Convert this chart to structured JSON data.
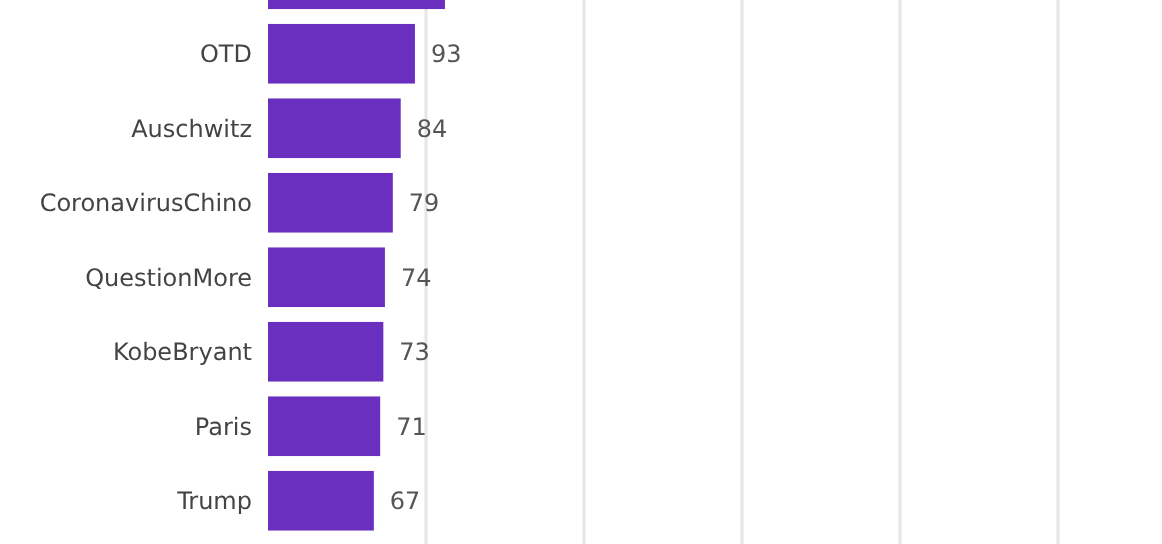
{
  "chart_data": {
    "type": "bar",
    "orientation": "horizontal",
    "categories": [
      null,
      "OTD",
      "Auschwitz",
      "CoronavirusChino",
      "QuestionMore",
      "KobeBryant",
      "Paris",
      "Trump"
    ],
    "values": [
      112,
      93,
      84,
      79,
      74,
      73,
      71,
      67
    ],
    "value_labels": [
      null,
      "93",
      "84",
      "79",
      "74",
      "73",
      "71",
      "67"
    ],
    "color": "#6a2fbf",
    "xlim": [
      0,
      500
    ],
    "xticks": [
      {
        "value": 100,
        "label": null
      },
      {
        "value": 200,
        "label": null
      },
      {
        "value": 300,
        "label": null
      },
      {
        "value": 400,
        "label": null
      },
      {
        "value": 500,
        "label": null
      }
    ],
    "grid": "x",
    "tick_labels": "y"
  }
}
